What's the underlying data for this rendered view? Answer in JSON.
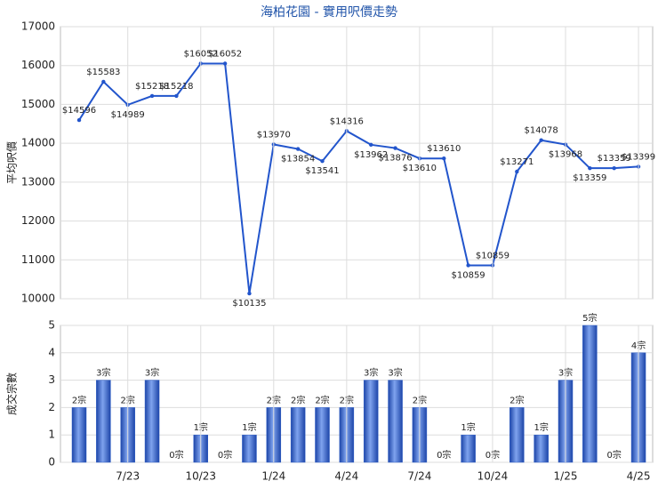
{
  "chart_data": [
    {
      "type": "line",
      "title": "海柏花園 - 實用呎價走勢",
      "ylabel": "平均呎價",
      "color": "#2255cc",
      "values": [
        14596,
        15583,
        14989,
        15218,
        15218,
        16052,
        16052,
        10135,
        13970,
        13854,
        13541,
        14316,
        13962,
        13876,
        13610,
        13610,
        10859,
        10859,
        13271,
        14078,
        13968,
        13359,
        13359,
        13399
      ],
      "value_labels": [
        "$14596",
        "$15583",
        "$14989",
        "$15218",
        "$15218",
        "$16052",
        "$16052",
        "$10135",
        "$13970",
        "$13854",
        "$13541",
        "$14316",
        "$13962",
        "$13876",
        "$13610",
        "$13610",
        "$10859",
        "$10859",
        "$13271",
        "$14078",
        "$13968",
        "$13359",
        "$13359",
        "$13399"
      ],
      "ylim": [
        10000,
        17000
      ],
      "yticks": [
        10000,
        11000,
        12000,
        13000,
        14000,
        15000,
        16000,
        17000
      ],
      "grid": true
    },
    {
      "type": "bar",
      "ylabel": "成交宗數",
      "color": "#2f5fc8",
      "categories": [
        null,
        null,
        "7/23",
        null,
        null,
        "10/23",
        null,
        null,
        "1/24",
        null,
        null,
        "4/24",
        null,
        null,
        "7/24",
        null,
        null,
        "10/24",
        null,
        null,
        "1/25",
        null,
        null,
        "4/25"
      ],
      "values": [
        2,
        3,
        2,
        3,
        0,
        1,
        0,
        1,
        2,
        2,
        2,
        2,
        3,
        3,
        2,
        0,
        1,
        0,
        2,
        1,
        3,
        5,
        0,
        4
      ],
      "value_labels": [
        "2宗",
        "3宗",
        "2宗",
        "3宗",
        "0宗",
        "1宗",
        "0宗",
        "1宗",
        "2宗",
        "2宗",
        "2宗",
        "2宗",
        "3宗",
        "3宗",
        "2宗",
        "0宗",
        "1宗",
        "0宗",
        "2宗",
        "1宗",
        "3宗",
        "5宗",
        "0宗",
        "4宗"
      ],
      "ylim": [
        0,
        5
      ],
      "yticks": [
        0,
        1,
        2,
        3,
        4,
        5
      ],
      "grid": true
    }
  ]
}
